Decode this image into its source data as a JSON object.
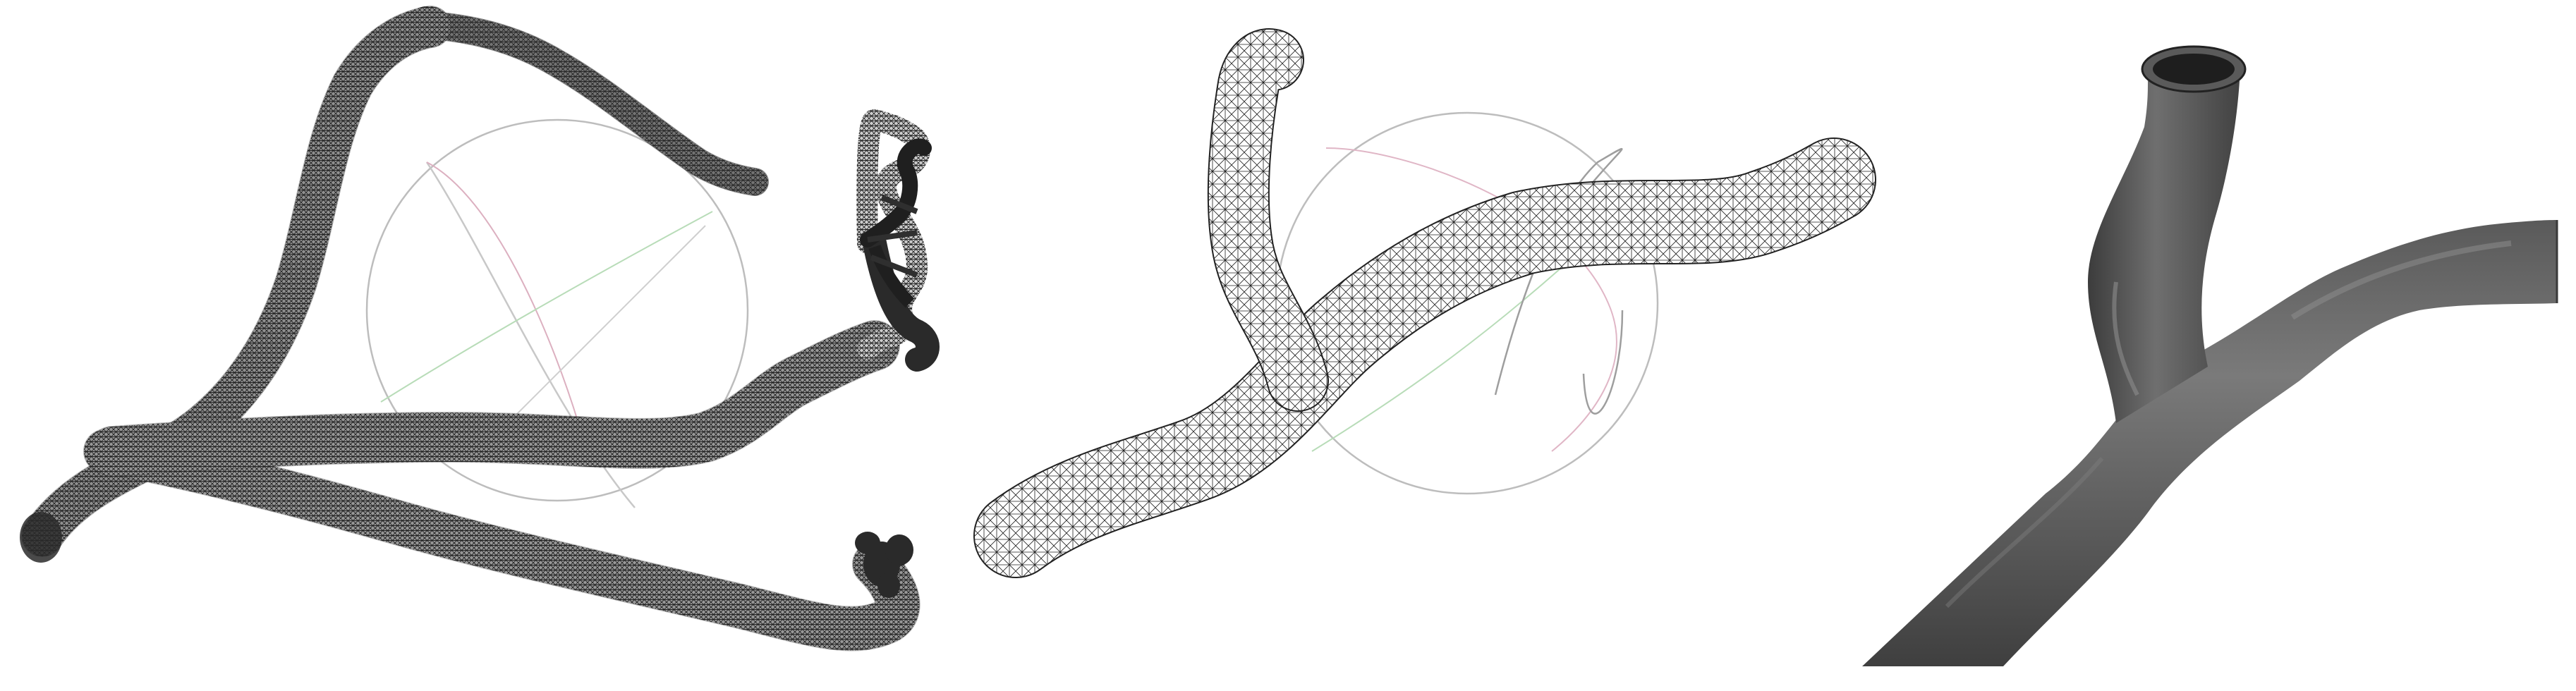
{
  "panels": [
    {
      "id": "left",
      "name": "vessel-tree-wireframe",
      "style": "wireframe"
    },
    {
      "id": "middle",
      "name": "bifurcation-wireframe",
      "style": "wireframe"
    },
    {
      "id": "right",
      "name": "bifurcation-shaded",
      "style": "shaded"
    }
  ],
  "colors": {
    "background": "#ffffff",
    "mesh": "#1a1a1a",
    "gizmo_ring": "#b8b8b8",
    "gizmo_red": "#d8a8b8",
    "gizmo_green": "#b0d8b0",
    "surface_dark": "#4a4a4a",
    "surface_mid": "#6e6e6e",
    "surface_light": "#9a9a9a"
  }
}
